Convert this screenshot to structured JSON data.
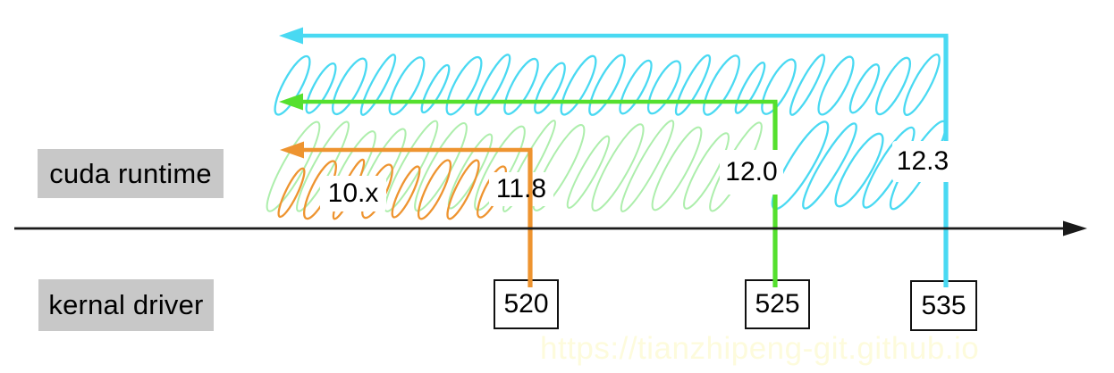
{
  "diagram": {
    "axis_label_runtime": "cuda runtime",
    "axis_label_driver": "kernal driver"
  },
  "runtime_versions": [
    {
      "label": "10.x"
    },
    {
      "label": "11.8"
    },
    {
      "label": "12.0"
    },
    {
      "label": "12.3"
    }
  ],
  "driver_versions": [
    {
      "label": "520"
    },
    {
      "label": "525"
    },
    {
      "label": "535"
    }
  ],
  "compatibility": [
    {
      "driver": "520",
      "max_runtime": "11.8",
      "color": "orange"
    },
    {
      "driver": "525",
      "max_runtime": "12.0",
      "color": "green"
    },
    {
      "driver": "535",
      "max_runtime": "12.3",
      "color": "cyan"
    }
  ],
  "watermark": "https://tianzhipeng-git.github.io",
  "colors": {
    "orange": "#EE9430",
    "green": "#55E02E",
    "pale_green": "#ADEEAC",
    "cyan": "#49D9F2",
    "label_bg": "#C8C8C8",
    "axis": "#1A1A1A",
    "box_border": "#111111",
    "watermark": "#FDFBDC",
    "text": "#000000"
  }
}
